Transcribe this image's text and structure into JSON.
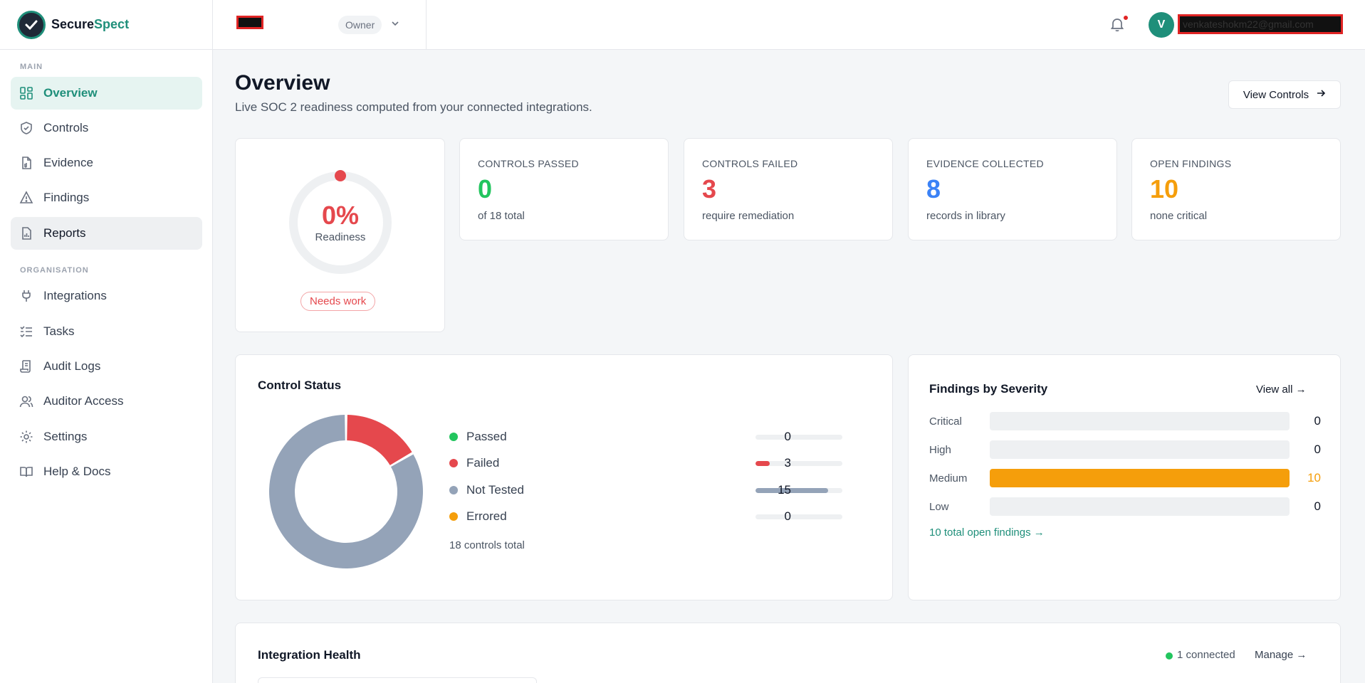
{
  "brand": {
    "name_part1": "Secure",
    "name_part2": "Spect"
  },
  "topbar": {
    "org_name": "",
    "role": "Owner",
    "user_initial": "V",
    "user_email": "venkateshokm22@gmail.com"
  },
  "sidebar": {
    "section_main": "MAIN",
    "section_org": "ORGANISATION",
    "items": [
      {
        "label": "Overview"
      },
      {
        "label": "Controls"
      },
      {
        "label": "Evidence"
      },
      {
        "label": "Findings"
      },
      {
        "label": "Reports"
      },
      {
        "label": "Integrations"
      },
      {
        "label": "Tasks"
      },
      {
        "label": "Audit Logs"
      },
      {
        "label": "Auditor Access"
      },
      {
        "label": "Settings"
      },
      {
        "label": "Help & Docs"
      }
    ]
  },
  "page": {
    "title": "Overview",
    "subtitle": "Live SOC 2 readiness computed from your connected integrations.",
    "view_controls": "View Controls"
  },
  "readiness": {
    "percent_label": "0%",
    "label": "Readiness",
    "status": "Needs work",
    "value": 0
  },
  "stats": [
    {
      "label": "CONTROLS PASSED",
      "value": "0",
      "sub": "of 18 total",
      "color": "#22c55e"
    },
    {
      "label": "CONTROLS FAILED",
      "value": "3",
      "sub": "require remediation",
      "color": "#e5484d"
    },
    {
      "label": "EVIDENCE COLLECTED",
      "value": "8",
      "sub": "records in library",
      "color": "#3b82f6"
    },
    {
      "label": "OPEN FINDINGS",
      "value": "10",
      "sub": "none critical",
      "color": "#f59e0b"
    }
  ],
  "control_status": {
    "title": "Control Status",
    "total_label": "18 controls total",
    "rows": [
      {
        "name": "Passed",
        "count": "0",
        "color": "#22c55e"
      },
      {
        "name": "Failed",
        "count": "3",
        "color": "#e5484d"
      },
      {
        "name": "Not Tested",
        "count": "15",
        "color": "#94a3b8"
      },
      {
        "name": "Errored",
        "count": "0",
        "color": "#f59e0b"
      }
    ]
  },
  "chart_data": {
    "type": "pie",
    "categories": [
      "Passed",
      "Failed",
      "Not Tested",
      "Errored"
    ],
    "values": [
      0,
      3,
      15,
      0
    ],
    "colors": [
      "#22c55e",
      "#e5484d",
      "#94a3b8",
      "#f59e0b"
    ],
    "title": "Control Status"
  },
  "findings": {
    "title": "Findings by Severity",
    "view_all": "View all →",
    "total_link": "10 total open findings →",
    "rows": [
      {
        "name": "Critical",
        "count": "0",
        "fraction": 0
      },
      {
        "name": "High",
        "count": "0",
        "fraction": 0
      },
      {
        "name": "Medium",
        "count": "10",
        "fraction": 1,
        "highlight": true
      },
      {
        "name": "Low",
        "count": "0",
        "fraction": 0
      }
    ]
  },
  "integration_health": {
    "title": "Integration Health",
    "connected": "1 connected",
    "manage": "Manage →"
  }
}
